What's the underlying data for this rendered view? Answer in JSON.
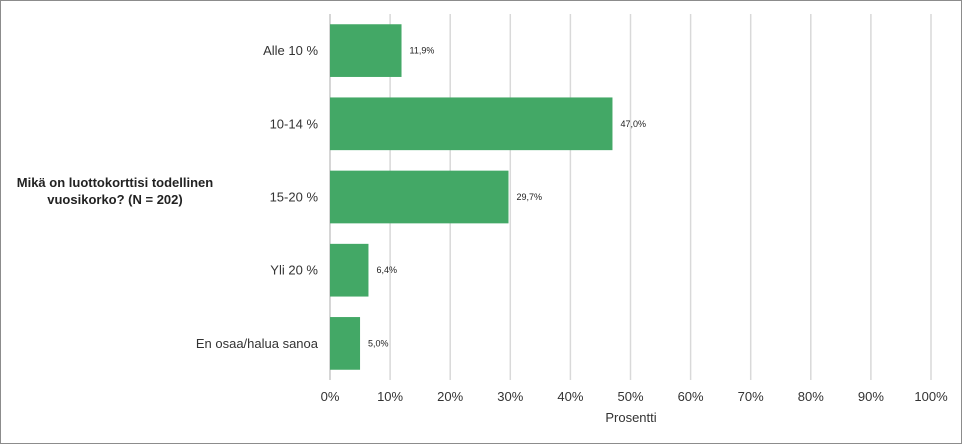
{
  "chart_data": {
    "type": "bar",
    "orientation": "horizontal",
    "question_label": "Mikä on luottokorttisi todellinen vuosikorko? (N = 202)",
    "categories": [
      "Alle 10 %",
      "10-14 %",
      "15-20 %",
      "Yli 20 %",
      "En osaa/halua sanoa"
    ],
    "values": [
      11.9,
      47.0,
      29.7,
      6.4,
      5.0
    ],
    "data_labels": [
      "11,9%",
      "47,0%",
      "29,7%",
      "6,4%",
      "5,0%"
    ],
    "xlabel": "Prosentti",
    "ylabel": "",
    "xlim": [
      0,
      100
    ],
    "x_ticks": [
      0,
      10,
      20,
      30,
      40,
      50,
      60,
      70,
      80,
      90,
      100
    ],
    "x_tick_labels": [
      "0%",
      "10%",
      "20%",
      "30%",
      "40%",
      "50%",
      "60%",
      "70%",
      "80%",
      "90%",
      "100%"
    ],
    "grid": true,
    "legend": "none",
    "bar_color": "#43a866",
    "grid_color": "#d9d9d9"
  }
}
